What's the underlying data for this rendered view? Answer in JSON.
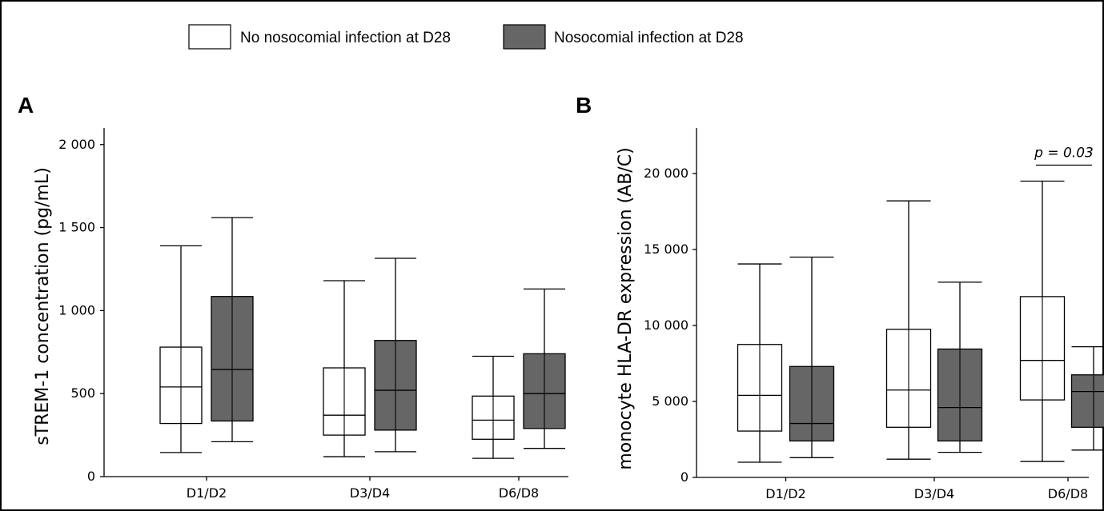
{
  "legend": [
    {
      "label": "No nosocomial infection at D28",
      "color": "#ffffff"
    },
    {
      "label": "Nosocomial infection at D28",
      "color": "#666666"
    }
  ],
  "chart_data": [
    {
      "type": "box",
      "panel_label": "A",
      "ylabel": "sTREM-1 concentration (pg/mL)",
      "ylim": [
        0,
        2100
      ],
      "yticks": [
        0,
        500,
        1000,
        1500,
        2000
      ],
      "ytick_labels": [
        "0",
        "500",
        "1 000",
        "1 500",
        "2 000"
      ],
      "categories": [
        "D1/D2",
        "D3/D4",
        "D6/D8"
      ],
      "series": [
        {
          "name": "No nosocomial infection at D28",
          "color": "#ffffff",
          "boxes": [
            {
              "min": 145,
              "q1": 320,
              "median": 540,
              "q3": 780,
              "max": 1390
            },
            {
              "min": 120,
              "q1": 250,
              "median": 370,
              "q3": 655,
              "max": 1180
            },
            {
              "min": 110,
              "q1": 225,
              "median": 340,
              "q3": 485,
              "max": 725
            }
          ]
        },
        {
          "name": "Nosocomial infection at D28",
          "color": "#666666",
          "boxes": [
            {
              "min": 210,
              "q1": 335,
              "median": 645,
              "q3": 1085,
              "max": 1560
            },
            {
              "min": 150,
              "q1": 280,
              "median": 520,
              "q3": 820,
              "max": 1315
            },
            {
              "min": 170,
              "q1": 290,
              "median": 500,
              "q3": 740,
              "max": 1130
            }
          ]
        }
      ],
      "annotations": []
    },
    {
      "type": "box",
      "panel_label": "B",
      "ylabel": "monocyte HLA-DR expression (AB/C)",
      "ylim": [
        0,
        23000
      ],
      "yticks": [
        0,
        5000,
        10000,
        15000,
        20000
      ],
      "ytick_labels": [
        "0",
        "5 000",
        "10 000",
        "15 000",
        "20 000"
      ],
      "categories": [
        "D1/D2",
        "D3/D4",
        "D6/D8"
      ],
      "series": [
        {
          "name": "No nosocomial infection at D28",
          "color": "#ffffff",
          "boxes": [
            {
              "min": 1000,
              "q1": 3050,
              "median": 5400,
              "q3": 8750,
              "max": 14050
            },
            {
              "min": 1200,
              "q1": 3300,
              "median": 5750,
              "q3": 9750,
              "max": 18200
            },
            {
              "min": 1050,
              "q1": 5100,
              "median": 7700,
              "q3": 11900,
              "max": 19500
            }
          ]
        },
        {
          "name": "Nosocomial infection at D28",
          "color": "#666666",
          "boxes": [
            {
              "min": 1300,
              "q1": 2400,
              "median": 3550,
              "q3": 7300,
              "max": 14500
            },
            {
              "min": 1650,
              "q1": 2400,
              "median": 4600,
              "q3": 8450,
              "max": 12850
            },
            {
              "min": 1800,
              "q1": 3300,
              "median": 5650,
              "q3": 6750,
              "max": 8600
            }
          ]
        }
      ],
      "annotations": [
        {
          "text": "p = 0.03",
          "category": "D6/D8",
          "y": 21500
        }
      ]
    }
  ]
}
